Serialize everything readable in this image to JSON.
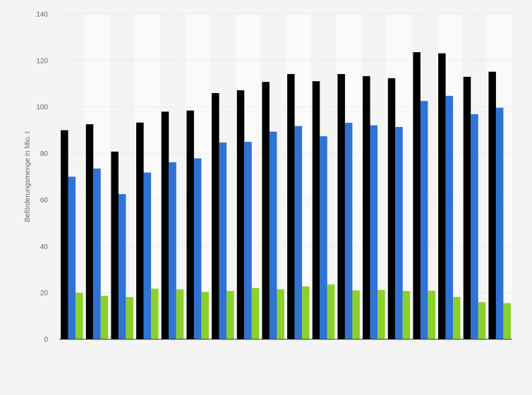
{
  "chart_data": {
    "type": "bar",
    "title": "",
    "xlabel": "",
    "ylabel": "Beförderungsmenge in Mio. t",
    "ylim": [
      0,
      140
    ],
    "yticks": [
      0,
      20,
      40,
      60,
      80,
      100,
      120,
      140
    ],
    "grid": true,
    "legend": "none",
    "categories": [
      "",
      "",
      "",
      "",
      "",
      "",
      "",
      "",
      "",
      "",
      "",
      "",
      "",
      "",
      "",
      "",
      "",
      ""
    ],
    "series": [
      {
        "color": "#000000",
        "values": [
          90,
          92.6,
          80.8,
          93.3,
          98,
          98.5,
          106,
          107.2,
          110.8,
          114.2,
          111.1,
          114.2,
          113.3,
          112.4,
          123.6,
          123.1,
          113,
          115.2
        ]
      },
      {
        "color": "#2f73d6",
        "values": [
          70,
          73.5,
          62.5,
          71.8,
          76.2,
          77.9,
          84.7,
          85,
          89.4,
          91.8,
          87.4,
          93.2,
          92.1,
          91.4,
          102.6,
          104.8,
          96.9,
          99.7
        ]
      },
      {
        "color": "#8ad22b",
        "values": [
          20,
          18.7,
          18.2,
          21.8,
          21.5,
          20.4,
          20.8,
          22.1,
          21.5,
          22.8,
          23.6,
          21.1,
          21.2,
          20.8,
          20.9,
          18.2,
          16,
          15.6
        ]
      }
    ]
  }
}
